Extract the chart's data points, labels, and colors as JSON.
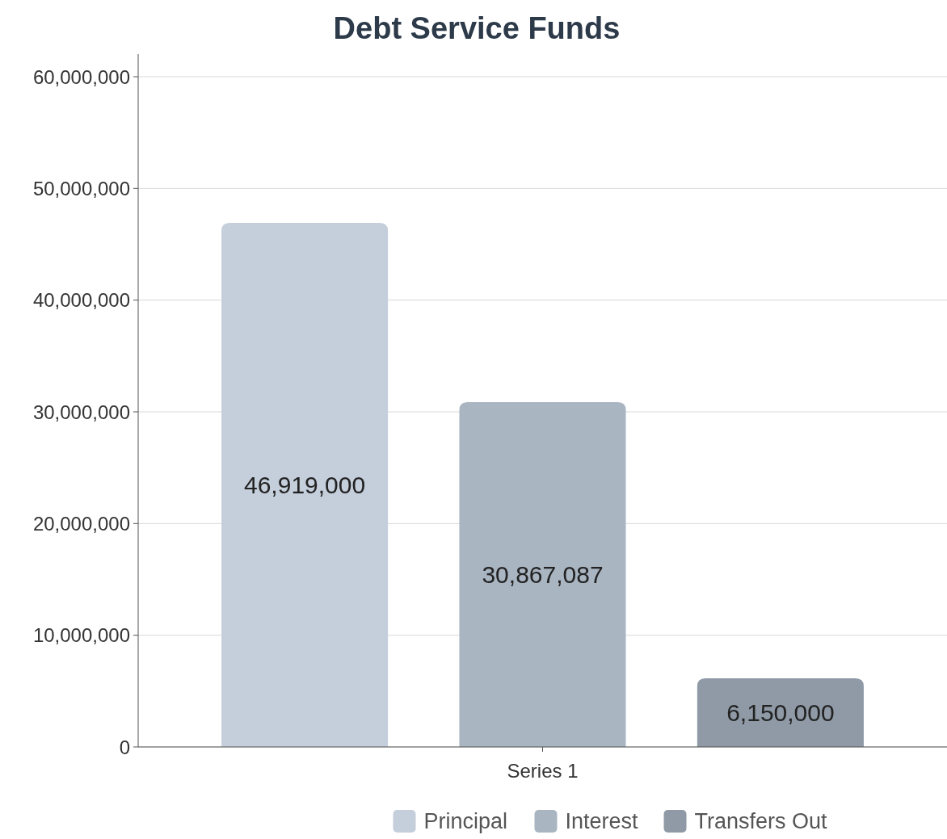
{
  "chart_data": {
    "type": "bar",
    "title": "Debt Service Funds",
    "categories": [
      "Series 1"
    ],
    "series": [
      {
        "name": "Principal",
        "color": "#c5cedb",
        "values": [
          46919000
        ]
      },
      {
        "name": "Interest",
        "color": "#aab5c2",
        "values": [
          30867087
        ]
      },
      {
        "name": "Transfers Out",
        "color": "#8f9aa6",
        "values": [
          6150000
        ]
      }
    ],
    "ylim": [
      0,
      60000000
    ],
    "yticks": [
      {
        "value": 0,
        "label": "0"
      },
      {
        "value": 10000000,
        "label": "10,000,000"
      },
      {
        "value": 20000000,
        "label": "20,000,000"
      },
      {
        "value": 30000000,
        "label": "30,000,000"
      },
      {
        "value": 40000000,
        "label": "40,000,000"
      },
      {
        "value": 50000000,
        "label": "50,000,000"
      },
      {
        "value": 60000000,
        "label": "60,000,000"
      }
    ],
    "grid": "y",
    "legend": "bottom",
    "value_labels": [
      [
        "46,919,000"
      ],
      [
        "30,867,087"
      ],
      [
        "6,150,000"
      ]
    ]
  }
}
